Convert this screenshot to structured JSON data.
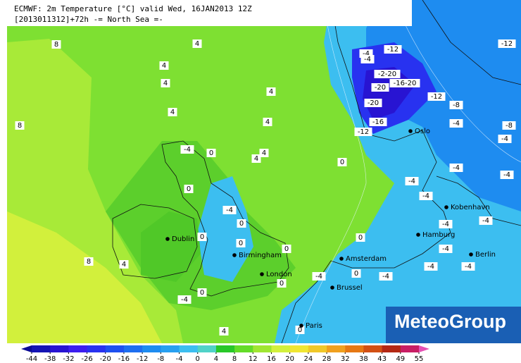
{
  "header": {
    "line1": "ECMWF: 2m Temperature [°C] valid Wed, 16JAN2013 12Z",
    "line2": "[2013011312]+72h -= North Sea =-"
  },
  "logo": "MeteoGroup",
  "cities": [
    "Oslo",
    "Kobenhavn",
    "Hamburg",
    "Berlin",
    "Amsterdam",
    "Brussel",
    "Paris",
    "London",
    "Birmingham",
    "Dublin"
  ],
  "contour_labels": [
    "8",
    "4",
    "4",
    "4",
    "4",
    "4",
    "4",
    "8",
    "4",
    "4",
    "-4",
    "0",
    "0",
    "0",
    "-4",
    "0",
    "0",
    "0",
    "0",
    "0",
    "8",
    "4",
    "0",
    "-4",
    "-4",
    "0",
    "-4",
    "4",
    "0",
    "-4",
    "-12",
    "-2-20",
    "-20",
    "-16-20",
    "-12",
    "-8",
    "-20",
    "-16",
    "-12",
    "-12",
    "-8",
    "-4",
    "-4",
    "-4",
    "-4",
    "-4",
    "-4",
    "-4",
    "-4",
    "-4",
    "-4",
    "-4",
    "0",
    "-4"
  ],
  "colorbar": {
    "ticks": [
      -44,
      -38,
      -32,
      -26,
      -20,
      -16,
      -12,
      -8,
      -4,
      0,
      4,
      8,
      12,
      16,
      20,
      24,
      28,
      32,
      38,
      43,
      49,
      55
    ],
    "colors": [
      "#0a0a96",
      "#1414b4",
      "#2814d2",
      "#3c1ef0",
      "#2832f0",
      "#1e50f0",
      "#1e6ef0",
      "#1e8cf0",
      "#28a0f0",
      "#3cbef0",
      "#50d2c8",
      "#28c828",
      "#64dc28",
      "#a0e632",
      "#d2f03c",
      "#f0e632",
      "#f0c828",
      "#f0a01e",
      "#e67814",
      "#d25014",
      "#b42814",
      "#c81e64",
      "#e650b4"
    ]
  }
}
